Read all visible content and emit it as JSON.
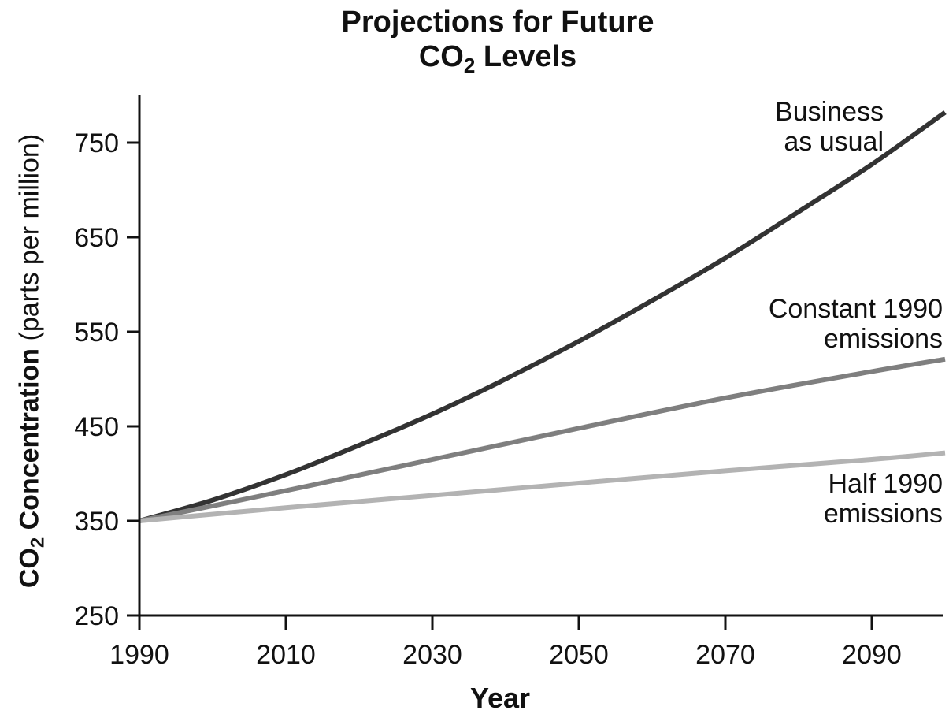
{
  "chart_data": {
    "type": "line",
    "title": {
      "line1": "Projections for Future",
      "line2_prefix": "CO",
      "line2_sub": "2",
      "line2_suffix": " Levels"
    },
    "xlabel": "Year",
    "ylabel": {
      "bold_prefix": "CO",
      "bold_sub": "2",
      "bold_suffix": " Concentration",
      "normal_suffix": " (parts per million)"
    },
    "xlim": [
      1990,
      2100
    ],
    "ylim": [
      250,
      800
    ],
    "xticks": [
      "1990",
      "2010",
      "2030",
      "2050",
      "2070",
      "2090"
    ],
    "yticks": [
      "250",
      "350",
      "450",
      "550",
      "650",
      "750"
    ],
    "grid": false,
    "series": [
      {
        "name_lines": [
          "Business",
          "as usual"
        ],
        "color": "#333333",
        "x": [
          1990,
          2000,
          2010,
          2020,
          2030,
          2040,
          2050,
          2060,
          2070,
          2080,
          2090,
          2100
        ],
        "y": [
          350,
          372,
          399,
          430,
          463,
          500,
          540,
          583,
          628,
          677,
          727,
          782
        ]
      },
      {
        "name_lines": [
          "Constant 1990",
          "emissions"
        ],
        "color": "#7f7f7f",
        "x": [
          1990,
          2010,
          2030,
          2050,
          2070,
          2090,
          2100
        ],
        "y": [
          350,
          382,
          415,
          448,
          480,
          508,
          521
        ]
      },
      {
        "name_lines": [
          "Half 1990",
          "emissions"
        ],
        "color": "#b3b3b3",
        "x": [
          1990,
          2010,
          2030,
          2050,
          2070,
          2090,
          2100
        ],
        "y": [
          350,
          364,
          377,
          390,
          403,
          415,
          422
        ]
      }
    ]
  }
}
